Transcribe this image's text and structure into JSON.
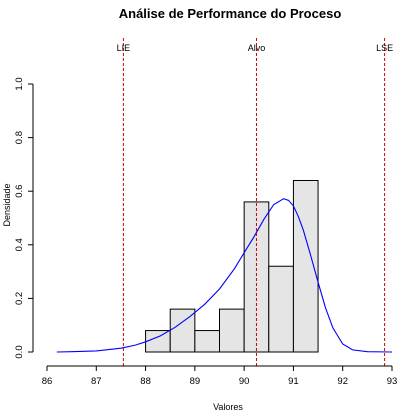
{
  "chart_data": {
    "type": "histogram",
    "title": "Análise de Performance do Proceso",
    "xlabel": "Valores",
    "ylabel": "Densidade",
    "xlim": [
      86,
      93
    ],
    "ylim": [
      0,
      1.0
    ],
    "x_ticks": [
      86,
      87,
      88,
      89,
      90,
      91,
      92,
      93
    ],
    "y_ticks": [
      0.0,
      0.2,
      0.4,
      0.6,
      0.8,
      1.0
    ],
    "x_tick_labels": [
      "86",
      "87",
      "88",
      "89",
      "90",
      "91",
      "92",
      "93"
    ],
    "y_tick_labels": [
      "0.0",
      "0.2",
      "0.4",
      "0.6",
      "0.8",
      "1.0"
    ],
    "grid": false,
    "bins": [
      {
        "x0": 88.0,
        "x1": 88.5,
        "density": 0.08
      },
      {
        "x0": 88.5,
        "x1": 89.0,
        "density": 0.16
      },
      {
        "x0": 89.0,
        "x1": 89.5,
        "density": 0.08
      },
      {
        "x0": 89.5,
        "x1": 90.0,
        "density": 0.16
      },
      {
        "x0": 90.0,
        "x1": 90.5,
        "density": 0.56
      },
      {
        "x0": 90.5,
        "x1": 91.0,
        "density": 0.32
      },
      {
        "x0": 91.0,
        "x1": 91.5,
        "density": 0.64
      }
    ],
    "density_curve": {
      "x": [
        86.2,
        86.5,
        87.0,
        87.5,
        87.8,
        88.0,
        88.3,
        88.6,
        88.9,
        89.2,
        89.5,
        89.8,
        90.0,
        90.2,
        90.4,
        90.6,
        90.8,
        90.9,
        91.0,
        91.1,
        91.2,
        91.35,
        91.5,
        91.65,
        91.8,
        92.0,
        92.2,
        92.5,
        93.0
      ],
      "y": [
        0.0,
        0.001,
        0.004,
        0.014,
        0.026,
        0.038,
        0.06,
        0.092,
        0.132,
        0.178,
        0.235,
        0.31,
        0.37,
        0.43,
        0.495,
        0.55,
        0.572,
        0.566,
        0.545,
        0.505,
        0.455,
        0.36,
        0.26,
        0.165,
        0.09,
        0.03,
        0.008,
        0.001,
        0.0
      ]
    },
    "reference_lines": [
      {
        "label": "LIE",
        "x": 87.55
      },
      {
        "label": "Alvo",
        "x": 90.25
      },
      {
        "label": "LSE",
        "x": 92.85
      }
    ],
    "colors": {
      "bar_fill": "#e5e5e5",
      "bar_stroke": "#000000",
      "curve": "#0000ff",
      "reference_line": "#cc0000",
      "axis": "#000000"
    }
  }
}
